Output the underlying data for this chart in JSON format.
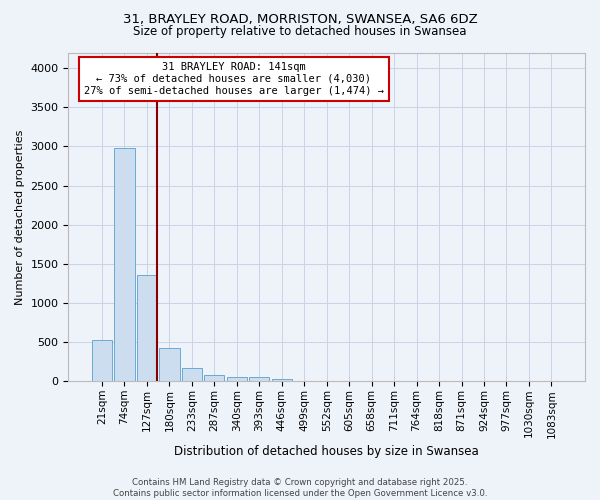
{
  "title1": "31, BRAYLEY ROAD, MORRISTON, SWANSEA, SA6 6DZ",
  "title2": "Size of property relative to detached houses in Swansea",
  "xlabel": "Distribution of detached houses by size in Swansea",
  "ylabel": "Number of detached properties",
  "categories": [
    "21sqm",
    "74sqm",
    "127sqm",
    "180sqm",
    "233sqm",
    "287sqm",
    "340sqm",
    "393sqm",
    "446sqm",
    "499sqm",
    "552sqm",
    "605sqm",
    "658sqm",
    "711sqm",
    "764sqm",
    "818sqm",
    "871sqm",
    "924sqm",
    "977sqm",
    "1030sqm",
    "1083sqm"
  ],
  "values": [
    530,
    2980,
    1360,
    430,
    175,
    85,
    55,
    50,
    30,
    0,
    0,
    0,
    0,
    0,
    0,
    0,
    0,
    0,
    0,
    0,
    0
  ],
  "bar_color": "#ccddf0",
  "bar_edge_color": "#6aaad4",
  "grid_color": "#c8d4e8",
  "background_color": "#eef2f9",
  "vline_color": "#880000",
  "annotation_text": "31 BRAYLEY ROAD: 141sqm\n← 73% of detached houses are smaller (4,030)\n27% of semi-detached houses are larger (1,474) →",
  "annotation_box_color": "#ffffff",
  "annotation_box_edge": "#cc0000",
  "footer1": "Contains HM Land Registry data © Crown copyright and database right 2025.",
  "footer2": "Contains public sector information licensed under the Open Government Licence v3.0.",
  "ylim": [
    0,
    4200
  ],
  "yticks": [
    0,
    500,
    1000,
    1500,
    2000,
    2500,
    3000,
    3500,
    4000
  ]
}
